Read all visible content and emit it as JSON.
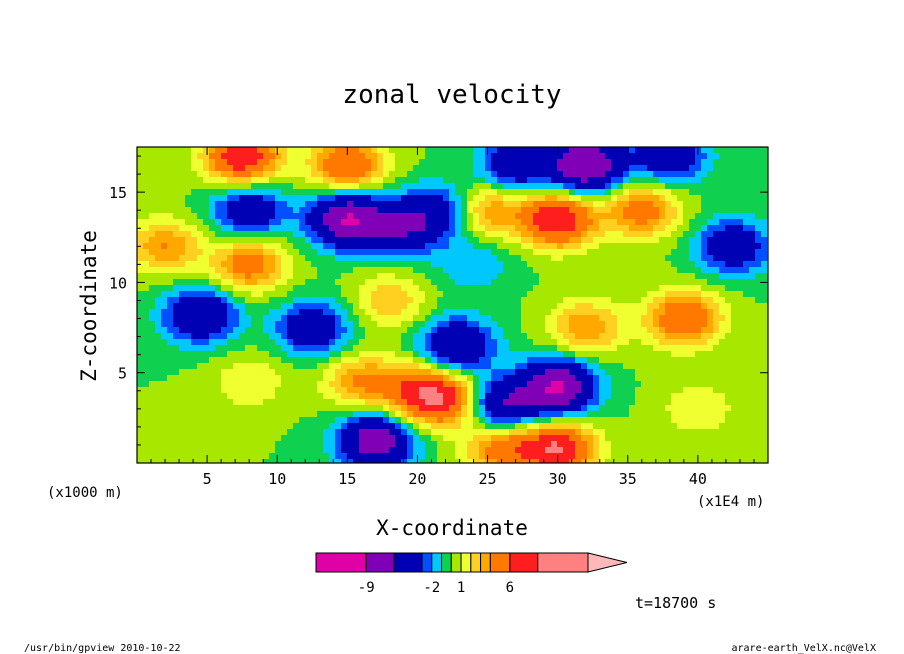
{
  "chart_data": {
    "type": "heatmap",
    "title": "zonal velocity",
    "xlabel": "X-coordinate",
    "ylabel": "Z-coordinate",
    "x_unit": "(x1E4 m)",
    "y_unit": "(x1000 m)",
    "xlim": [
      0,
      45
    ],
    "ylim": [
      0,
      17.5
    ],
    "x_ticks": [
      "5",
      "10",
      "15",
      "20",
      "25",
      "30",
      "35",
      "40"
    ],
    "x_tick_values": [
      5,
      10,
      15,
      20,
      25,
      30,
      35,
      40
    ],
    "y_ticks": [
      "5",
      "10",
      "15"
    ],
    "y_tick_values": [
      5,
      10,
      15
    ],
    "field_features": [
      {
        "x": 4.5,
        "z": 8.2,
        "value": -6
      },
      {
        "x": 8,
        "z": 14,
        "value": -5
      },
      {
        "x": 12.5,
        "z": 7.5,
        "value": -5
      },
      {
        "x": 15,
        "z": 13.5,
        "value": -9
      },
      {
        "x": 19,
        "z": 13,
        "value": -5
      },
      {
        "x": 21.5,
        "z": 14,
        "value": -4
      },
      {
        "x": 24,
        "z": 11,
        "value": -2
      },
      {
        "x": 30,
        "z": 4.2,
        "value": -9
      },
      {
        "x": 26,
        "z": 3.2,
        "value": -6
      },
      {
        "x": 32,
        "z": 16.5,
        "value": -9
      },
      {
        "x": 38,
        "z": 17,
        "value": -5
      },
      {
        "x": 42.5,
        "z": 12,
        "value": -5
      },
      {
        "x": 27,
        "z": 16.5,
        "value": -5
      },
      {
        "x": 17,
        "z": 1.2,
        "value": -8
      },
      {
        "x": 22.8,
        "z": 6.5,
        "value": -6
      },
      {
        "x": 7.5,
        "z": 17,
        "value": 8
      },
      {
        "x": 15,
        "z": 16.5,
        "value": 6
      },
      {
        "x": 2,
        "z": 12,
        "value": 4
      },
      {
        "x": 8,
        "z": 11,
        "value": 5
      },
      {
        "x": 20,
        "z": 4,
        "value": 5
      },
      {
        "x": 16,
        "z": 4.5,
        "value": 4
      },
      {
        "x": 8,
        "z": 4.5,
        "value": 2
      },
      {
        "x": 25,
        "z": 14,
        "value": 4
      },
      {
        "x": 30,
        "z": 13.5,
        "value": 8
      },
      {
        "x": 36,
        "z": 14,
        "value": 5
      },
      {
        "x": 39,
        "z": 8,
        "value": 6
      },
      {
        "x": 32,
        "z": 7.5,
        "value": 4
      },
      {
        "x": 22,
        "z": 3.5,
        "value": 6
      },
      {
        "x": 30,
        "z": 0.8,
        "value": 8
      },
      {
        "x": 26,
        "z": 0.8,
        "value": 5
      },
      {
        "x": 18,
        "z": 9,
        "value": 3
      },
      {
        "x": 40,
        "z": 3,
        "value": 2
      }
    ],
    "colorbar": {
      "levels": [
        -12,
        -9,
        -6,
        -3,
        -2,
        -1,
        0,
        1,
        2,
        3,
        4,
        6,
        8,
        12
      ],
      "labels": [
        "-9",
        "-2",
        "1",
        "6"
      ],
      "label_values": [
        -9,
        -2,
        1,
        6
      ],
      "colors": [
        "#e000a8",
        "#8000b8",
        "#0000b4",
        "#0050ff",
        "#00c8ff",
        "#10d050",
        "#a8e800",
        "#f0ff30",
        "#ffd020",
        "#ffa800",
        "#ff7800",
        "#ff1e1e",
        "#ff8080",
        "#ffb8b8"
      ],
      "extend": "max"
    },
    "annotation": "t=18700 s"
  },
  "footer": {
    "left": "/usr/bin/gpview  2010-10-22",
    "right": "arare-earth_VelX.nc@VelX"
  }
}
